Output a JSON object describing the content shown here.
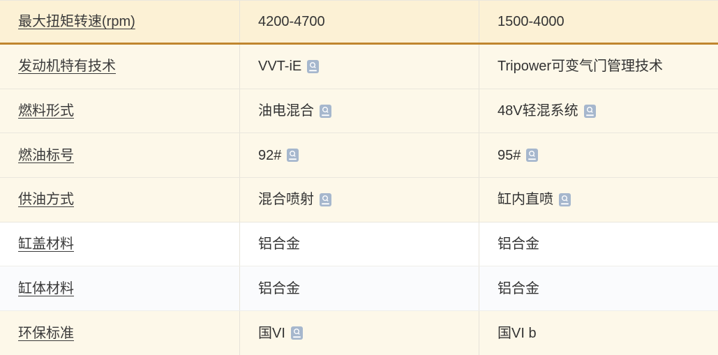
{
  "table": {
    "rows": [
      {
        "label": "最大扭矩转速(rpm)",
        "car1": {
          "text": "4200-4700",
          "icon": false
        },
        "car2": {
          "text": "1500-4000",
          "icon": false
        },
        "style": "selected"
      },
      {
        "label": "发动机特有技术",
        "car1": {
          "text": "VVT-iE",
          "icon": true
        },
        "car2": {
          "text": "Tripower可变气门管理技术",
          "icon": false
        },
        "style": "diff"
      },
      {
        "label": "燃料形式",
        "car1": {
          "text": "油电混合",
          "icon": true
        },
        "car2": {
          "text": "48V轻混系统",
          "icon": true
        },
        "style": "diff"
      },
      {
        "label": "燃油标号",
        "car1": {
          "text": "92#",
          "icon": true
        },
        "car2": {
          "text": "95#",
          "icon": true
        },
        "style": "diff"
      },
      {
        "label": "供油方式",
        "car1": {
          "text": "混合喷射",
          "icon": true
        },
        "car2": {
          "text": "缸内直喷",
          "icon": true
        },
        "style": "diff"
      },
      {
        "label": "缸盖材料",
        "car1": {
          "text": "铝合金",
          "icon": false
        },
        "car2": {
          "text": "铝合金",
          "icon": false
        },
        "style": "same"
      },
      {
        "label": "缸体材料",
        "car1": {
          "text": "铝合金",
          "icon": false
        },
        "car2": {
          "text": "铝合金",
          "icon": false
        },
        "style": "same-alt"
      },
      {
        "label": "环保标准",
        "car1": {
          "text": "国VI",
          "icon": true
        },
        "car2": {
          "text": "国VI b",
          "icon": false
        },
        "style": "diff"
      }
    ]
  },
  "icons": {
    "search": "magnifier-search-icon"
  },
  "colors": {
    "row_selected_bg": "#fcf1d5",
    "row_diff_bg": "#fdf8e9",
    "row_same_bg": "#ffffff",
    "row_same_alt_bg": "#fafbfd",
    "accent_border": "#c0862f",
    "icon_bg": "#a6b7cd",
    "row_separator": "#eae7dd",
    "column_divider": "#e6e3da",
    "text": "#333333"
  }
}
